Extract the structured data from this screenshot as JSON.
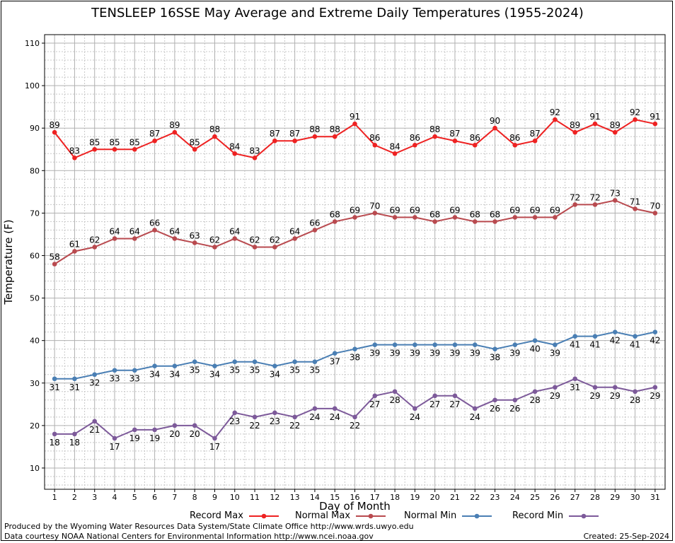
{
  "title": "TENSLEEP 16SSE May Average and Extreme Daily Temperatures (1955-2024)",
  "footer": {
    "produced_by": "Produced by the Wyoming Water Resources Data System/State Climate Office http://www.wrds.uwyo.edu",
    "courtesy": "Data courtesy NOAA National Centers for Environmental Information http://www.ncei.noaa.gov",
    "created": "Created:  25-Sep-2024"
  },
  "chart_data": {
    "type": "line",
    "title": "TENSLEEP 16SSE May Average and Extreme Daily Temperatures (1955-2024)",
    "xlabel": "Day of Month",
    "ylabel": "Temperature (F)",
    "x": [
      1,
      2,
      3,
      4,
      5,
      6,
      7,
      8,
      9,
      10,
      11,
      12,
      13,
      14,
      15,
      16,
      17,
      18,
      19,
      20,
      21,
      22,
      23,
      24,
      25,
      26,
      27,
      28,
      29,
      30,
      31
    ],
    "xlim": [
      0.5,
      31.5
    ],
    "ylim": [
      5,
      112
    ],
    "yticks": [
      10,
      20,
      30,
      40,
      50,
      60,
      70,
      80,
      90,
      100,
      110
    ],
    "grid": true,
    "legend_position": "bottom",
    "series": [
      {
        "name": "Record Max",
        "color": "#ee2222",
        "values": [
          89,
          83,
          85,
          85,
          85,
          87,
          89,
          85,
          88,
          84,
          83,
          87,
          87,
          88,
          88,
          91,
          86,
          84,
          86,
          88,
          87,
          86,
          90,
          86,
          87,
          92,
          89,
          91,
          89,
          92,
          91
        ]
      },
      {
        "name": "Normal Max",
        "color": "#b94a4f",
        "values": [
          58,
          61,
          62,
          64,
          64,
          66,
          64,
          63,
          62,
          64,
          62,
          62,
          64,
          66,
          68,
          69,
          70,
          69,
          69,
          68,
          69,
          68,
          68,
          69,
          69,
          69,
          72,
          72,
          73,
          71,
          70
        ]
      },
      {
        "name": "Normal Min",
        "color": "#4a7fb4",
        "values": [
          31,
          31,
          32,
          33,
          33,
          34,
          34,
          35,
          34,
          35,
          35,
          34,
          35,
          35,
          37,
          38,
          39,
          39,
          39,
          39,
          39,
          39,
          38,
          39,
          40,
          39,
          41,
          41,
          42,
          41,
          42
        ]
      },
      {
        "name": "Record Min",
        "color": "#7d5a9a",
        "values": [
          18,
          18,
          21,
          17,
          19,
          19,
          20,
          20,
          17,
          23,
          22,
          23,
          22,
          24,
          24,
          22,
          27,
          28,
          24,
          27,
          27,
          24,
          26,
          26,
          28,
          29,
          31,
          29,
          29,
          28,
          29
        ]
      }
    ]
  }
}
